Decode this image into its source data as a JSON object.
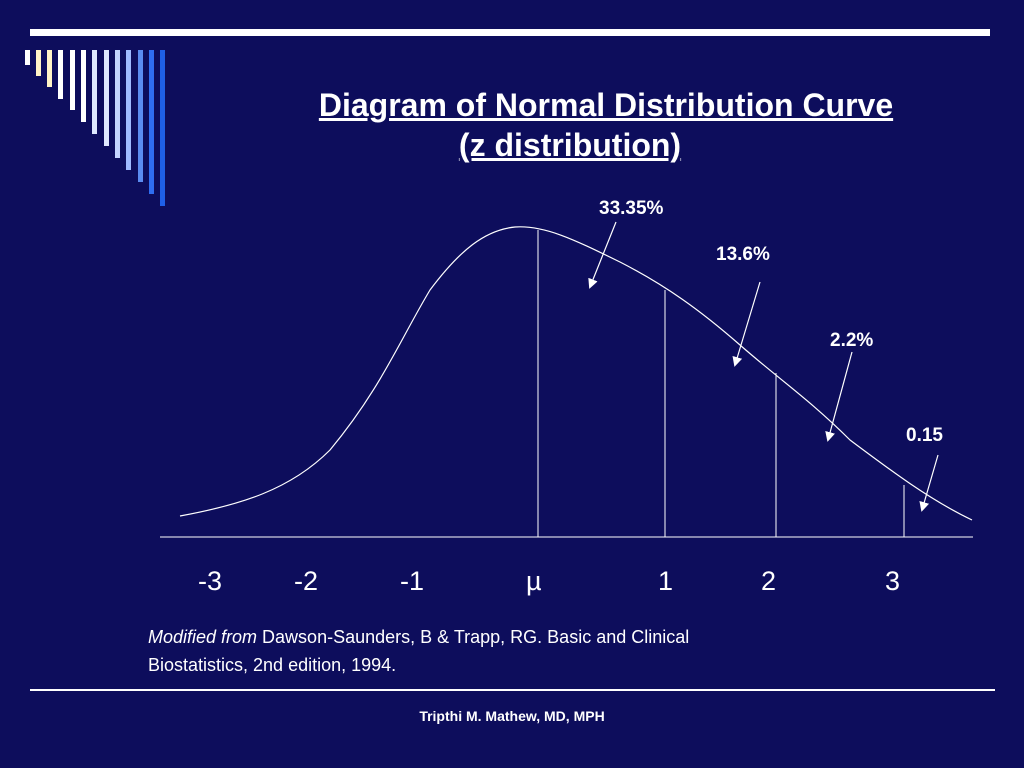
{
  "slide": {
    "title_line1": "Diagram of Normal Distribution Curve",
    "title_line2": "(z distribution)",
    "percent_labels": [
      "33.35%",
      "13.6%",
      "2.2%",
      "0.15"
    ],
    "axis_labels": [
      "-3",
      "-2",
      "-1",
      "µ",
      "1",
      "2",
      "3"
    ],
    "citation_italic": "Modified from",
    "citation_line1_rest": " Dawson-Saunders, B & Trapp, RG. Basic and Clinical",
    "citation_line2": "Biostatistics, 2nd edition, 1994.",
    "author": "Tripthi M. Mathew, MD, MPH"
  },
  "colors": {
    "background": "#0d0d5c",
    "foreground": "#ffffff",
    "accent_bars": [
      "#ffffff",
      "#fff3c6",
      "#fff3c6",
      "#ffffff",
      "#ffffff",
      "#dfe8ff",
      "#c4d4ff",
      "#9fbaff",
      "#5b8cf0",
      "#2f6df0",
      "#1f5fe8"
    ]
  }
}
